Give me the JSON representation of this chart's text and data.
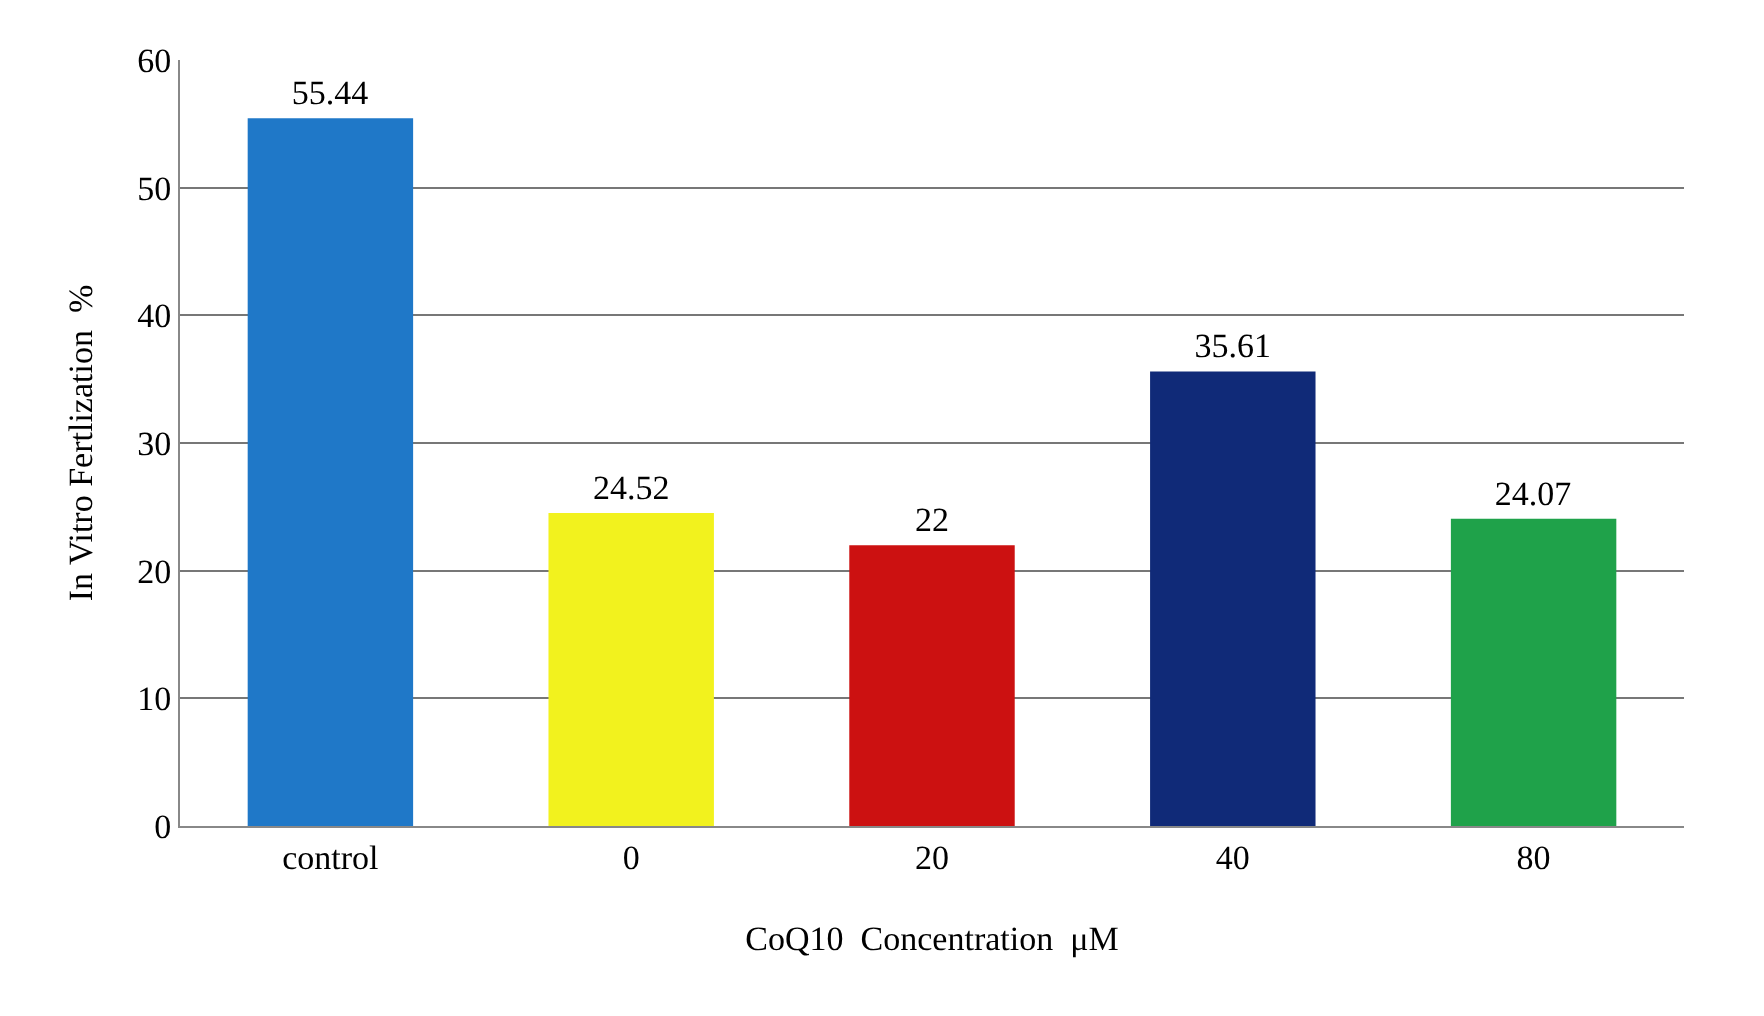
{
  "chart_data": {
    "type": "bar",
    "xlabel": "CoQ10  Concentration  μM",
    "ylabel": "In Vitro Fertlization  %",
    "categories": [
      "control",
      "0",
      "20",
      "40",
      "80"
    ],
    "values": [
      55.44,
      24.52,
      22,
      35.61,
      24.07
    ],
    "colors": [
      "#1f78c8",
      "#f2f21e",
      "#cc1111",
      "#102a78",
      "#1fa24a"
    ],
    "ylim": [
      0,
      60
    ],
    "yticks": [
      0,
      10,
      20,
      30,
      40,
      50,
      60
    ],
    "grid": "y",
    "data_labels": true
  }
}
